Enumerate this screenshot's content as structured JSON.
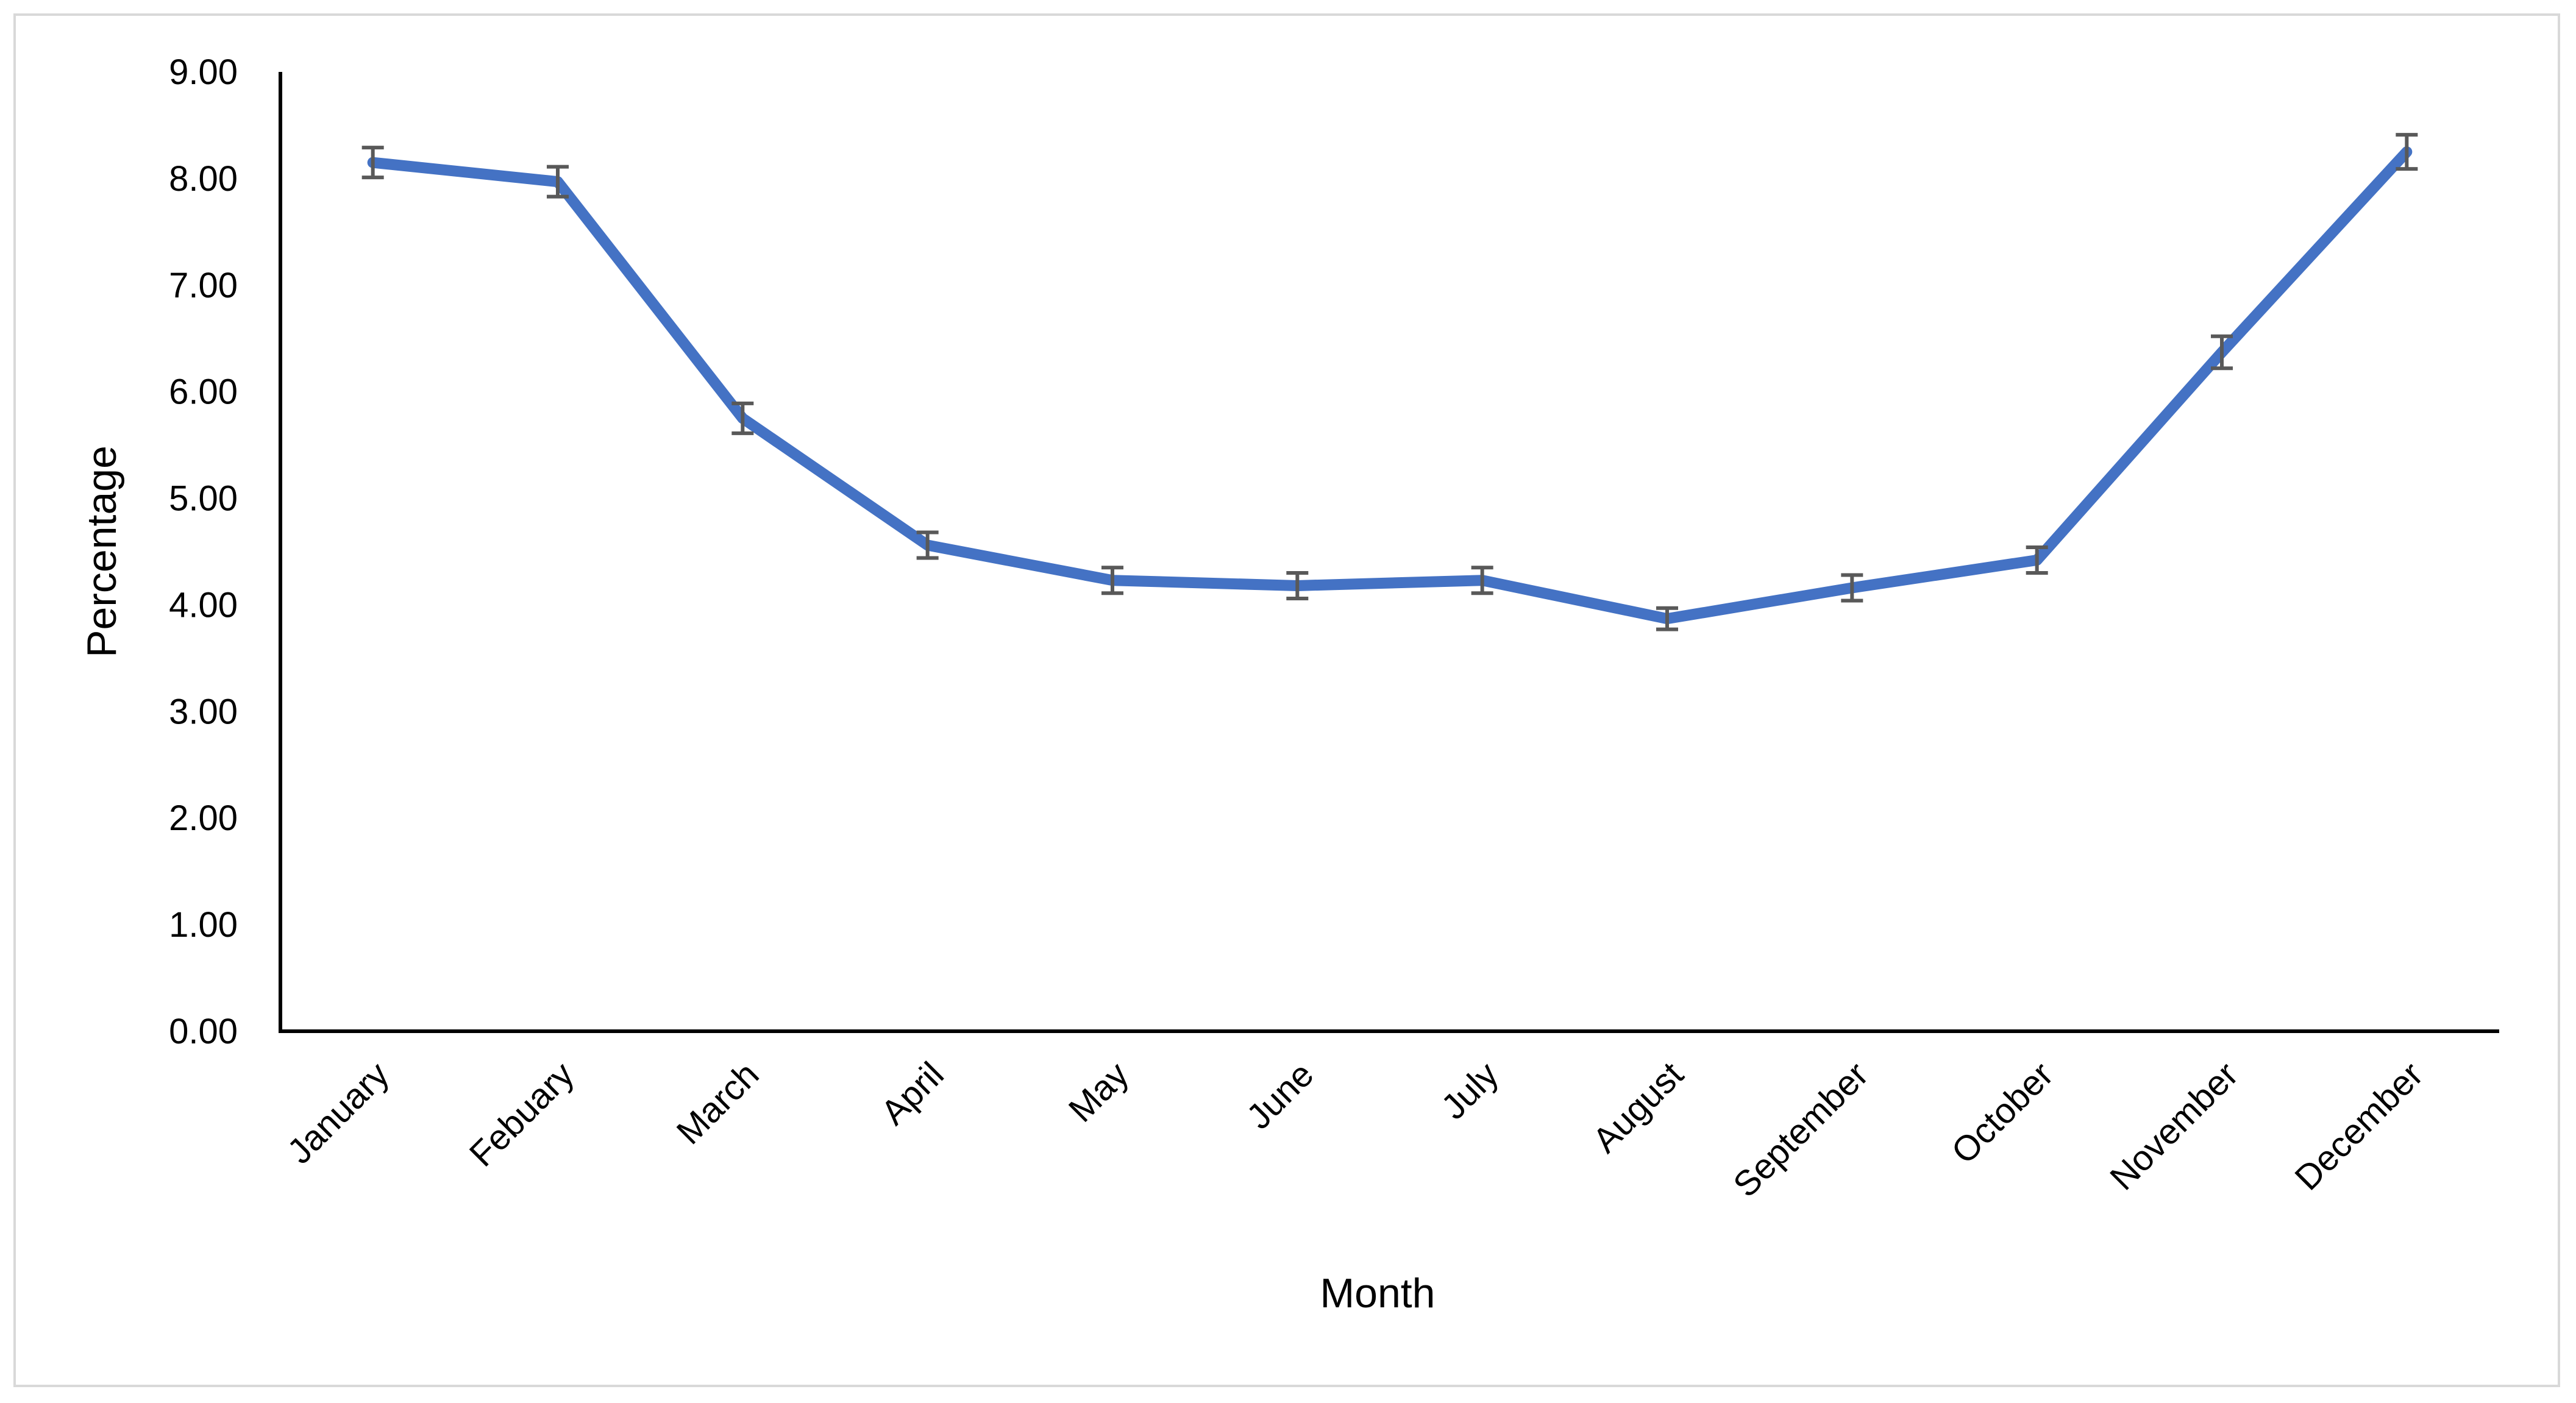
{
  "chart_data": {
    "type": "line",
    "title": "",
    "xlabel": "Month",
    "ylabel": "Percentage",
    "ylim": [
      0,
      9
    ],
    "yticks": [
      "0.00",
      "1.00",
      "2.00",
      "3.00",
      "4.00",
      "5.00",
      "6.00",
      "7.00",
      "8.00",
      "9.00"
    ],
    "categories": [
      "January",
      "Febuary",
      "March",
      "April",
      "May",
      "June",
      "July",
      "August",
      "September",
      "October",
      "November",
      "December"
    ],
    "series": [
      {
        "values": [
          8.15,
          7.97,
          5.75,
          4.56,
          4.23,
          4.18,
          4.23,
          3.87,
          4.16,
          4.42,
          6.37,
          8.25
        ],
        "error": [
          0.14,
          0.14,
          0.14,
          0.12,
          0.12,
          0.12,
          0.12,
          0.1,
          0.12,
          0.12,
          0.15,
          0.16
        ],
        "color": "#4472c4"
      }
    ],
    "grid": false,
    "legend": "none",
    "error_bar_color": "#595959",
    "axis_color": "#000000"
  }
}
